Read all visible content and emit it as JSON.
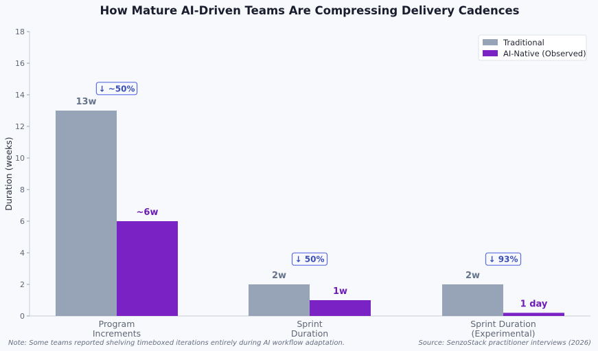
{
  "chart_data": {
    "type": "bar",
    "title": "How Mature AI-Driven Teams Are Compressing Delivery Cadences",
    "ylabel": "Duration (weeks)",
    "xlabel": "",
    "ylim": [
      0,
      18
    ],
    "yticks": [
      0,
      2,
      4,
      6,
      8,
      10,
      12,
      14,
      16,
      18
    ],
    "grid": false,
    "legend_position": "top-right",
    "categories": [
      [
        "Program",
        "Increments"
      ],
      [
        "Sprint",
        "Duration"
      ],
      [
        "Sprint Duration",
        "(Experimental)"
      ]
    ],
    "series": [
      {
        "name": "Traditional",
        "color": "#97a3b6",
        "label_color": "#66748b",
        "values": [
          13,
          2,
          2
        ],
        "labels": [
          "13w",
          "2w",
          "2w"
        ]
      },
      {
        "name": "AI-Native (Observed)",
        "color": "#7a22c4",
        "label_color": "#6e1cb8",
        "values": [
          6,
          1,
          0.2
        ],
        "labels": [
          "~6w",
          "1w",
          "1 day"
        ]
      }
    ],
    "annotations": [
      {
        "category": 0,
        "text": "↓ ~50%",
        "y": 14.4
      },
      {
        "category": 1,
        "text": "↓ 50%",
        "y": 3.6
      },
      {
        "category": 2,
        "text": "↓ 93%",
        "y": 3.6
      }
    ]
  },
  "footer": {
    "note": "Note: Some teams reported shelving timeboxed iterations entirely during AI workflow adaptation.",
    "source": "Source: SenzoStack practitioner interviews (2026)"
  }
}
